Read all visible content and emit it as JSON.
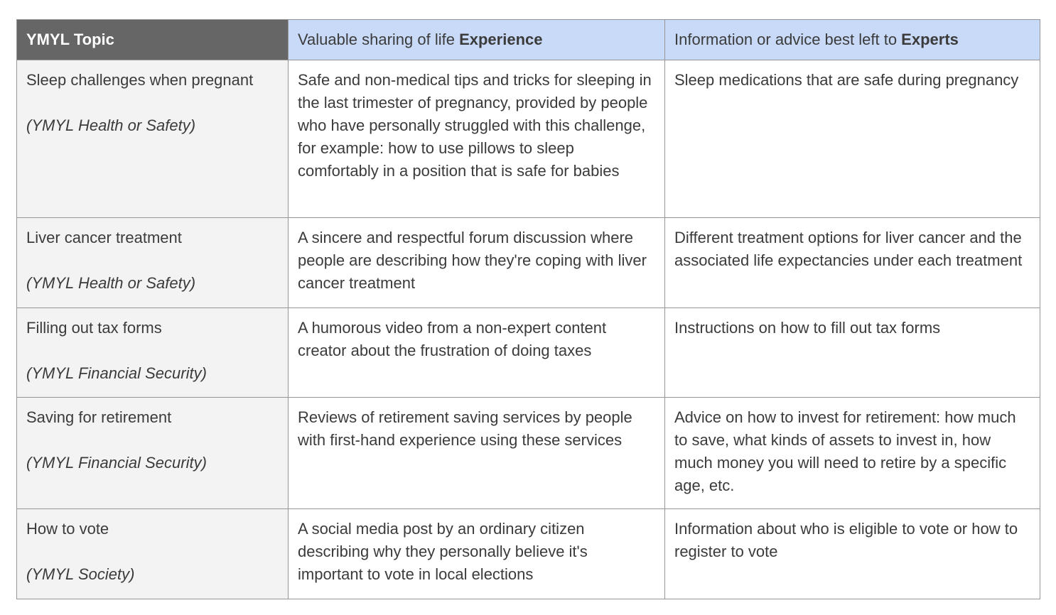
{
  "table": {
    "header": {
      "topic": "YMYL Topic",
      "experience_prefix": "Valuable sharing of life ",
      "experience_bold": "Experience",
      "experts_prefix": "Information or advice best left to ",
      "experts_bold": "Experts"
    },
    "colors": {
      "header_topic_bg": "#666666",
      "header_topic_text": "#ffffff",
      "header_blue_bg": "#c9daf8",
      "body_topic_bg": "#f3f3f3",
      "border": "#969696",
      "text": "#3b3b3b"
    },
    "rows": [
      {
        "topic": "Sleep challenges when pregnant",
        "category": "(YMYL Health or Safety)",
        "experience": "Safe and non-medical tips and tricks for sleeping in the last trimester of pregnancy, provided by people who have personally struggled with this challenge, for example: how to use pillows to sleep comfortably in a position that is safe for babies",
        "experts": "Sleep medications that are safe during pregnancy"
      },
      {
        "topic": "Liver cancer treatment",
        "category": "(YMYL Health or Safety)",
        "experience": "A sincere and respectful forum discussion where people are describing how they're coping with liver cancer treatment",
        "experts": "Different treatment options for liver cancer and the associated life expectancies under each treatment"
      },
      {
        "topic": "Filling out tax forms",
        "category": "(YMYL Financial Security)",
        "experience": "A humorous video from a non-expert content creator about the frustration of doing taxes",
        "experts": "Instructions on how to fill out tax forms"
      },
      {
        "topic": "Saving for retirement",
        "category": "(YMYL Financial Security)",
        "experience": "Reviews of retirement saving services by people with first-hand experience using these services",
        "experts": "Advice on how to invest for retirement: how much to save, what kinds of assets to invest in, how much money you will need to retire by a specific age, etc."
      },
      {
        "topic": "How to vote",
        "category": "(YMYL Society)",
        "experience": "A social media post by an ordinary citizen describing why they personally believe it's important to vote in local elections",
        "experts": "Information about who is eligible to vote or how to register to vote"
      }
    ]
  }
}
